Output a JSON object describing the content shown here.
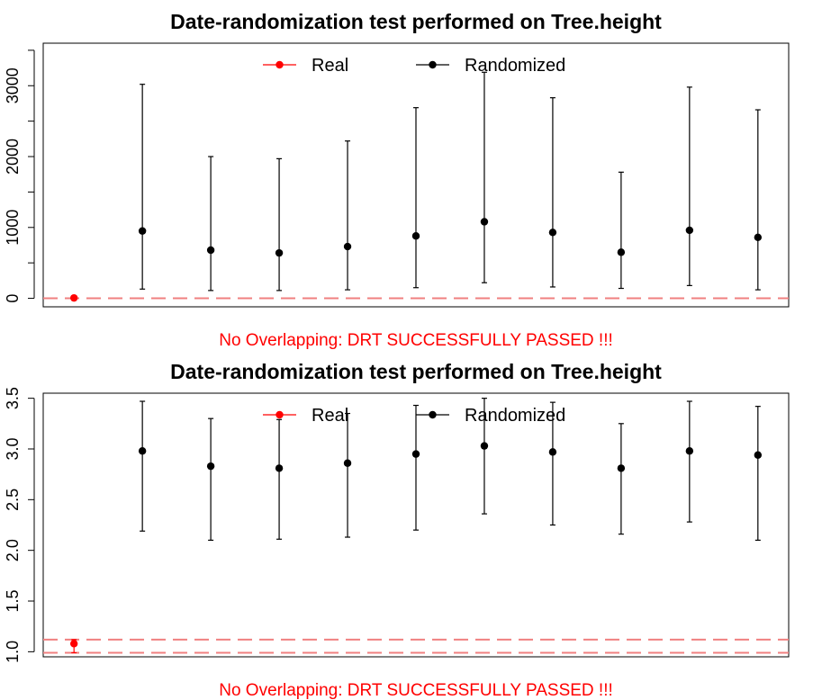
{
  "colors": {
    "real": "#ff0000",
    "randomized": "#000000",
    "reference_line": "#f08080",
    "message": "#ff0000"
  },
  "chart_data": [
    {
      "type": "scatter",
      "title": "Date-randomization test performed on Tree.height",
      "xlabel": "",
      "ylabel": "",
      "ylim": [
        -120,
        3600
      ],
      "yticks": [
        0,
        1000,
        2000,
        3000
      ],
      "yminor_ticks": [
        500,
        1500,
        2500,
        3500
      ],
      "x": [
        1,
        2,
        3,
        4,
        5,
        6,
        7,
        8,
        9,
        10,
        11
      ],
      "xlim": [
        0.55,
        11.45
      ],
      "legend": {
        "placement": "top",
        "entries": [
          "Real",
          "Randomized"
        ]
      },
      "series": [
        {
          "name": "Real",
          "points": [
            {
              "x": 1,
              "y": 5,
              "low": 5,
              "high": 5
            }
          ]
        },
        {
          "name": "Randomized",
          "points": [
            {
              "x": 2,
              "y": 950,
              "low": 130,
              "high": 3020
            },
            {
              "x": 3,
              "y": 680,
              "low": 110,
              "high": 2000
            },
            {
              "x": 4,
              "y": 640,
              "low": 110,
              "high": 1970
            },
            {
              "x": 5,
              "y": 730,
              "low": 120,
              "high": 2220
            },
            {
              "x": 6,
              "y": 880,
              "low": 150,
              "high": 2690
            },
            {
              "x": 7,
              "y": 1080,
              "low": 220,
              "high": 3190
            },
            {
              "x": 8,
              "y": 930,
              "low": 160,
              "high": 2830
            },
            {
              "x": 9,
              "y": 650,
              "low": 140,
              "high": 1780
            },
            {
              "x": 10,
              "y": 960,
              "low": 180,
              "high": 2980
            },
            {
              "x": 11,
              "y": 860,
              "low": 120,
              "high": 2660
            }
          ]
        }
      ],
      "reference_lines": [
        0,
        0
      ],
      "annotation": "No Overlapping: DRT SUCCESSFULLY PASSED !!!"
    },
    {
      "type": "scatter",
      "title": "Date-randomization test performed on Tree.height",
      "xlabel": "",
      "ylabel": "",
      "ylim": [
        0.95,
        3.55
      ],
      "yticks": [
        1.0,
        1.5,
        2.0,
        2.5,
        3.0,
        3.5
      ],
      "yminor_ticks": [],
      "x": [
        1,
        2,
        3,
        4,
        5,
        6,
        7,
        8,
        9,
        10,
        11
      ],
      "xlim": [
        0.55,
        11.45
      ],
      "legend": {
        "placement": "top",
        "entries": [
          "Real",
          "Randomized"
        ]
      },
      "series": [
        {
          "name": "Real",
          "points": [
            {
              "x": 1,
              "y": 1.08,
              "low": 0.99,
              "high": 1.12
            }
          ]
        },
        {
          "name": "Randomized",
          "points": [
            {
              "x": 2,
              "y": 2.98,
              "low": 2.19,
              "high": 3.47
            },
            {
              "x": 3,
              "y": 2.83,
              "low": 2.1,
              "high": 3.3
            },
            {
              "x": 4,
              "y": 2.81,
              "low": 2.11,
              "high": 3.29
            },
            {
              "x": 5,
              "y": 2.86,
              "low": 2.13,
              "high": 3.35
            },
            {
              "x": 6,
              "y": 2.95,
              "low": 2.2,
              "high": 3.43
            },
            {
              "x": 7,
              "y": 3.03,
              "low": 2.36,
              "high": 3.5
            },
            {
              "x": 8,
              "y": 2.97,
              "low": 2.25,
              "high": 3.46
            },
            {
              "x": 9,
              "y": 2.81,
              "low": 2.16,
              "high": 3.25
            },
            {
              "x": 10,
              "y": 2.98,
              "low": 2.28,
              "high": 3.47
            },
            {
              "x": 11,
              "y": 2.94,
              "low": 2.1,
              "high": 3.42
            }
          ]
        }
      ],
      "reference_lines": [
        0.99,
        1.12
      ],
      "annotation": "No Overlapping: DRT SUCCESSFULLY PASSED !!!"
    }
  ]
}
